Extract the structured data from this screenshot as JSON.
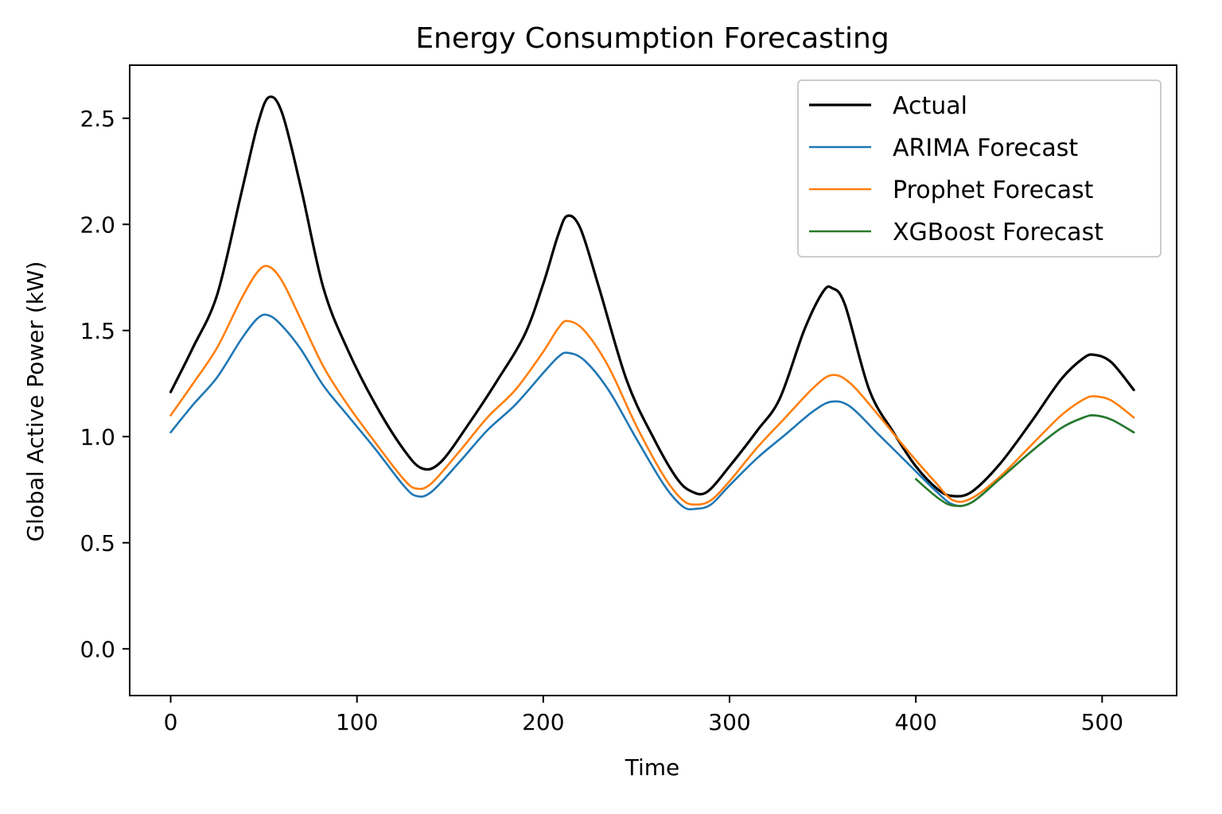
{
  "chart_data": {
    "type": "line",
    "title": "Energy Consumption Forecasting",
    "xlabel": "Time",
    "ylabel": "Global Active Power (kW)",
    "xlim": [
      -22,
      540
    ],
    "ylim": [
      -0.22,
      2.75
    ],
    "xticks": [
      {
        "value": 0,
        "label": "0"
      },
      {
        "value": 100,
        "label": "100"
      },
      {
        "value": 200,
        "label": "200"
      },
      {
        "value": 300,
        "label": "300"
      },
      {
        "value": 400,
        "label": "400"
      },
      {
        "value": 500,
        "label": "500"
      }
    ],
    "yticks": [
      {
        "value": 0.0,
        "label": "0.0"
      },
      {
        "value": 0.5,
        "label": "0.5"
      },
      {
        "value": 1.0,
        "label": "1.0"
      },
      {
        "value": 1.5,
        "label": "1.5"
      },
      {
        "value": 2.0,
        "label": "2.0"
      },
      {
        "value": 2.5,
        "label": "2.5"
      }
    ],
    "grid": false,
    "legend_position": "upper right",
    "series": [
      {
        "name": "Actual",
        "color": "#000000",
        "x": [
          0,
          12,
          25,
          38,
          47,
          53,
          60,
          70,
          82,
          95,
          110,
          125,
          135,
          145,
          160,
          175,
          190,
          200,
          208,
          213,
          220,
          230,
          245,
          260,
          272,
          280,
          288,
          300,
          315,
          327,
          340,
          350,
          355,
          362,
          375,
          388,
          400,
          412,
          420,
          430,
          445,
          462,
          478,
          490,
          496,
          505,
          517
        ],
        "y": [
          1.21,
          1.42,
          1.67,
          2.15,
          2.48,
          2.6,
          2.52,
          2.17,
          1.7,
          1.41,
          1.15,
          0.94,
          0.85,
          0.88,
          1.06,
          1.26,
          1.48,
          1.72,
          1.95,
          2.04,
          1.98,
          1.7,
          1.26,
          0.98,
          0.8,
          0.74,
          0.74,
          0.86,
          1.03,
          1.18,
          1.5,
          1.68,
          1.7,
          1.62,
          1.22,
          1.02,
          0.86,
          0.75,
          0.72,
          0.74,
          0.87,
          1.07,
          1.27,
          1.37,
          1.385,
          1.35,
          1.22
        ]
      },
      {
        "name": "ARIMA Forecast",
        "color": "#1f77b4",
        "x": [
          0,
          12,
          25,
          38,
          47,
          53,
          60,
          70,
          82,
          95,
          110,
          125,
          132,
          140,
          155,
          170,
          185,
          200,
          208,
          213,
          222,
          235,
          250,
          265,
          275,
          282,
          290,
          300,
          315,
          330,
          345,
          355,
          365,
          380,
          395,
          410,
          420,
          430,
          445,
          462,
          478,
          490,
          496,
          505,
          517
        ],
        "y": [
          1.02,
          1.15,
          1.28,
          1.46,
          1.56,
          1.57,
          1.52,
          1.41,
          1.24,
          1.1,
          0.94,
          0.77,
          0.72,
          0.74,
          0.88,
          1.03,
          1.15,
          1.3,
          1.375,
          1.395,
          1.36,
          1.22,
          0.99,
          0.77,
          0.67,
          0.66,
          0.68,
          0.77,
          0.9,
          1.01,
          1.12,
          1.165,
          1.14,
          1.01,
          0.88,
          0.75,
          0.68,
          0.69,
          0.8,
          0.93,
          1.04,
          1.09,
          1.1,
          1.08,
          1.02
        ]
      },
      {
        "name": "Prophet Forecast",
        "color": "#ff7f0e",
        "x": [
          0,
          12,
          25,
          38,
          47,
          53,
          60,
          70,
          82,
          95,
          110,
          125,
          132,
          140,
          155,
          170,
          185,
          200,
          208,
          213,
          222,
          235,
          250,
          265,
          275,
          282,
          290,
          300,
          315,
          330,
          345,
          355,
          365,
          380,
          395,
          410,
          420,
          430,
          445,
          462,
          478,
          490,
          496,
          505,
          517
        ],
        "y": [
          1.1,
          1.25,
          1.42,
          1.65,
          1.78,
          1.8,
          1.73,
          1.55,
          1.33,
          1.15,
          0.97,
          0.8,
          0.755,
          0.78,
          0.93,
          1.09,
          1.22,
          1.4,
          1.51,
          1.545,
          1.5,
          1.33,
          1.05,
          0.81,
          0.7,
          0.68,
          0.7,
          0.79,
          0.95,
          1.09,
          1.23,
          1.29,
          1.25,
          1.1,
          0.94,
          0.79,
          0.7,
          0.71,
          0.81,
          0.96,
          1.1,
          1.175,
          1.19,
          1.17,
          1.09
        ]
      },
      {
        "name": "XGBoost Forecast",
        "color": "#2a7a2a",
        "x": [
          400,
          412,
          420,
          430,
          445,
          462,
          478,
          490,
          496,
          505,
          517
        ],
        "y": [
          0.8,
          0.71,
          0.675,
          0.69,
          0.8,
          0.93,
          1.04,
          1.09,
          1.1,
          1.08,
          1.02
        ]
      }
    ]
  }
}
